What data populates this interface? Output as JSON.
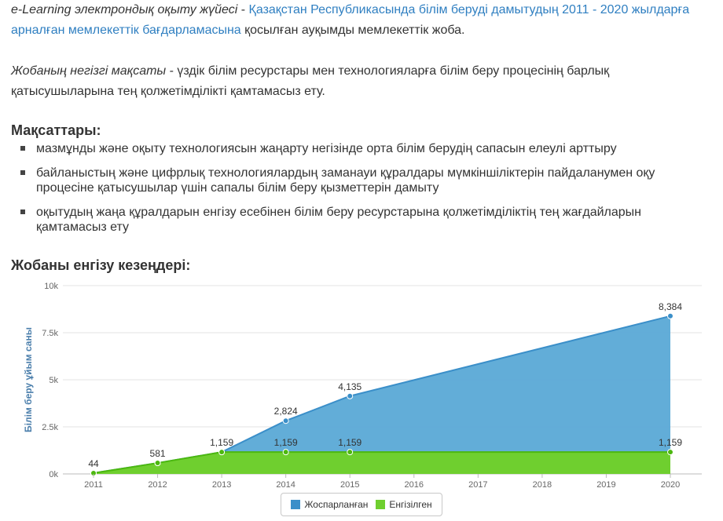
{
  "intro": {
    "lead_italic": "e-Learning электрондық оқыту жүйесі",
    "dash": " - ",
    "link_text": "Қазақстан Республикасында білім беруді дамытудың 2011 - 2020 жылдарға арналған мемлекеттік бағдарламасына",
    "tail": " қосылған ауқымды мемлекеттік жоба."
  },
  "goal_para": {
    "lead_italic": "Жобаның негізгі мақсаты",
    "text": " - үздік білім ресурстары мен технологияларға білім беру процесінің барлық қатысушыларына тең қолжетімділікті қамтамасыз ету."
  },
  "objectives": {
    "heading": "Мақсаттары:",
    "items": [
      "мазмұнды және оқыту технологиясын жаңарту негізінде орта білім берудің сапасын елеулі арттыру",
      "байланыстың және цифрлық технологиялардың заманауи құралдары мүмкіншіліктерін пайдаланумен оқу процесіне қатысушылар үшін сапалы білім беру қызметтерін дамыту",
      "оқытудың жаңа құралдарын енгізу есебінен білім беру ресурстарына қолжетімділіктің тең жағдайларын қамтамасыз ету"
    ]
  },
  "stages_heading": "Жобаны енгізу кезеңдері:",
  "colors": {
    "planned": "#5aa9d6",
    "planned_line": "#3b8fc9",
    "implemented": "#6fcf2f",
    "implemented_line": "#4cb80f",
    "link": "#2f7fc1"
  },
  "chart_data": {
    "type": "area",
    "x": [
      "2011",
      "2012",
      "2013",
      "2014",
      "2015",
      "2016",
      "2017",
      "2018",
      "2019",
      "2020"
    ],
    "ylabel": "Білім беру ұйым саны",
    "yticks": [
      "0k",
      "2.5k",
      "5k",
      "7.5k",
      "10k"
    ],
    "ytick_values": [
      0,
      2500,
      5000,
      7500,
      10000
    ],
    "ylim": [
      0,
      10000
    ],
    "grid": true,
    "legend": "bottom-center",
    "series": [
      {
        "name": "Жоспарланған",
        "values": [
          44,
          581,
          1159,
          2824,
          4135,
          null,
          null,
          null,
          null,
          8384
        ],
        "labels": [
          "",
          "",
          "",
          "2,824",
          "4,135",
          "",
          "",
          "",
          "",
          "8,384"
        ]
      },
      {
        "name": "Енгізілген",
        "values": [
          44,
          581,
          1159,
          1159,
          1159,
          null,
          null,
          null,
          null,
          1159
        ],
        "labels": [
          "44",
          "581",
          "1,159",
          "1,159",
          "1,159",
          "",
          "",
          "",
          "",
          "1,159"
        ]
      }
    ]
  }
}
